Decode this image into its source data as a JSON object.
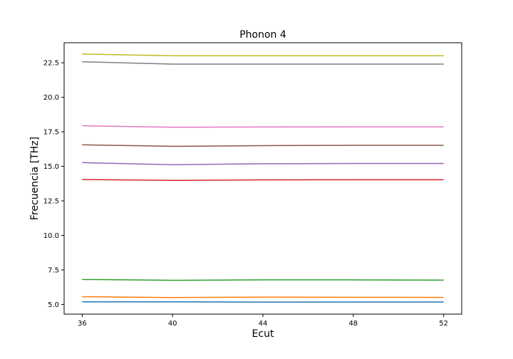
{
  "chart_data": {
    "type": "line",
    "title": "Phonon 4",
    "xlabel": "Ecut",
    "ylabel": "Frecuencia [THz]",
    "x": [
      36,
      40,
      44,
      48,
      52
    ],
    "xticks": [
      36,
      40,
      44,
      48,
      52
    ],
    "yticks": [
      "5.0",
      "7.5",
      "10.0",
      "12.5",
      "15.0",
      "17.5",
      "20.0",
      "22.5"
    ],
    "xlim": [
      35.2,
      52.8
    ],
    "ylim": [
      4.3,
      23.95
    ],
    "grid": false,
    "series": [
      {
        "color": "#1f77b4",
        "values": [
          5.19,
          5.19,
          5.17,
          5.18,
          5.18
        ]
      },
      {
        "color": "#ff7f0e",
        "values": [
          5.56,
          5.5,
          5.53,
          5.52,
          5.51
        ]
      },
      {
        "color": "#2ca02c",
        "values": [
          6.81,
          6.75,
          6.78,
          6.78,
          6.76
        ]
      },
      {
        "color": "#d62728",
        "values": [
          14.05,
          13.98,
          14.02,
          14.03,
          14.03
        ]
      },
      {
        "color": "#9467bd",
        "values": [
          15.27,
          15.12,
          15.19,
          15.21,
          15.21
        ]
      },
      {
        "color": "#8c564b",
        "values": [
          16.56,
          16.45,
          16.5,
          16.52,
          16.52
        ]
      },
      {
        "color": "#e377c2",
        "values": [
          17.94,
          17.83,
          17.85,
          17.86,
          17.86
        ]
      },
      {
        "color": "#7f7f7f",
        "values": [
          22.57,
          22.4,
          22.4,
          22.4,
          22.4
        ]
      },
      {
        "color": "#bcbd22",
        "values": [
          23.13,
          23.01,
          23.01,
          23.01,
          23.01
        ]
      }
    ]
  }
}
